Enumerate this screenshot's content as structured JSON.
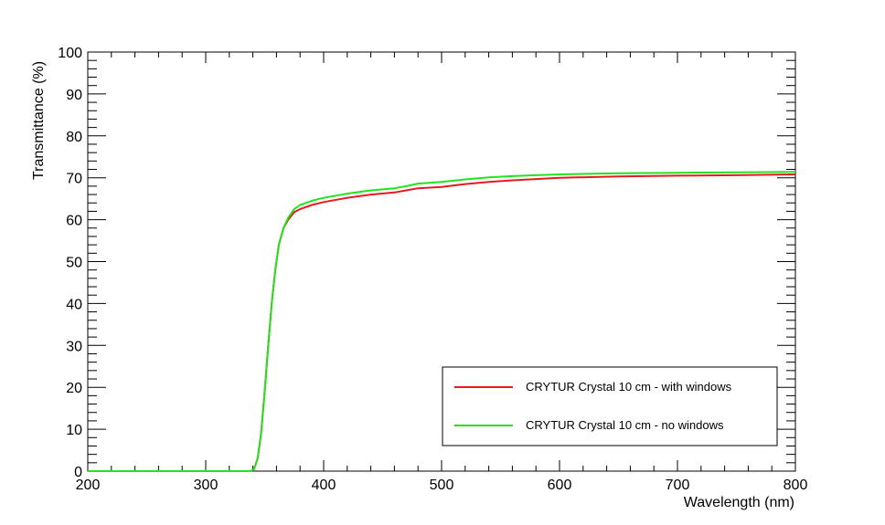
{
  "chart_data": {
    "type": "line",
    "title": "",
    "xlabel": "Wavelength (nm)",
    "ylabel": "Transmittance (%)",
    "xlim": [
      200,
      800
    ],
    "ylim": [
      0,
      100
    ],
    "x_ticks": [
      "200",
      "300",
      "400",
      "500",
      "600",
      "700",
      "800"
    ],
    "y_ticks": [
      "0",
      "10",
      "20",
      "30",
      "40",
      "50",
      "60",
      "70",
      "80",
      "90",
      "100"
    ],
    "grid": false,
    "legend_position": "bottom-right",
    "series": [
      {
        "name": "CRYTUR Crystal 10 cm - with windows",
        "color": "#e8191e",
        "points": [
          [
            200,
            0
          ],
          [
            338,
            0
          ],
          [
            341,
            0.5
          ],
          [
            344,
            3
          ],
          [
            347,
            9
          ],
          [
            350,
            19
          ],
          [
            353,
            30
          ],
          [
            356,
            40
          ],
          [
            359,
            48
          ],
          [
            362,
            54
          ],
          [
            366,
            58
          ],
          [
            370,
            60
          ],
          [
            375,
            61.8
          ],
          [
            380,
            62.5
          ],
          [
            390,
            63.5
          ],
          [
            400,
            64.2
          ],
          [
            420,
            65.2
          ],
          [
            440,
            66
          ],
          [
            460,
            66.5
          ],
          [
            470,
            67
          ],
          [
            480,
            67.5
          ],
          [
            500,
            67.8
          ],
          [
            520,
            68.5
          ],
          [
            540,
            69
          ],
          [
            560,
            69.4
          ],
          [
            580,
            69.7
          ],
          [
            600,
            70
          ],
          [
            650,
            70.3
          ],
          [
            700,
            70.5
          ],
          [
            750,
            70.6
          ],
          [
            800,
            70.8
          ]
        ]
      },
      {
        "name": "CRYTUR Crystal 10 cm - no windows",
        "color": "#24e21f",
        "points": [
          [
            200,
            0
          ],
          [
            338,
            0
          ],
          [
            341,
            0.5
          ],
          [
            344,
            3
          ],
          [
            347,
            9
          ],
          [
            350,
            19
          ],
          [
            353,
            30
          ],
          [
            356,
            40
          ],
          [
            359,
            48
          ],
          [
            362,
            54
          ],
          [
            366,
            58
          ],
          [
            370,
            60.5
          ],
          [
            375,
            62.5
          ],
          [
            380,
            63.5
          ],
          [
            390,
            64.5
          ],
          [
            400,
            65.2
          ],
          [
            420,
            66.2
          ],
          [
            440,
            67
          ],
          [
            460,
            67.5
          ],
          [
            470,
            68
          ],
          [
            480,
            68.6
          ],
          [
            500,
            69
          ],
          [
            520,
            69.6
          ],
          [
            540,
            70.1
          ],
          [
            560,
            70.4
          ],
          [
            580,
            70.6
          ],
          [
            600,
            70.8
          ],
          [
            650,
            71.1
          ],
          [
            700,
            71.2
          ],
          [
            750,
            71.3
          ],
          [
            800,
            71.4
          ]
        ]
      }
    ]
  }
}
